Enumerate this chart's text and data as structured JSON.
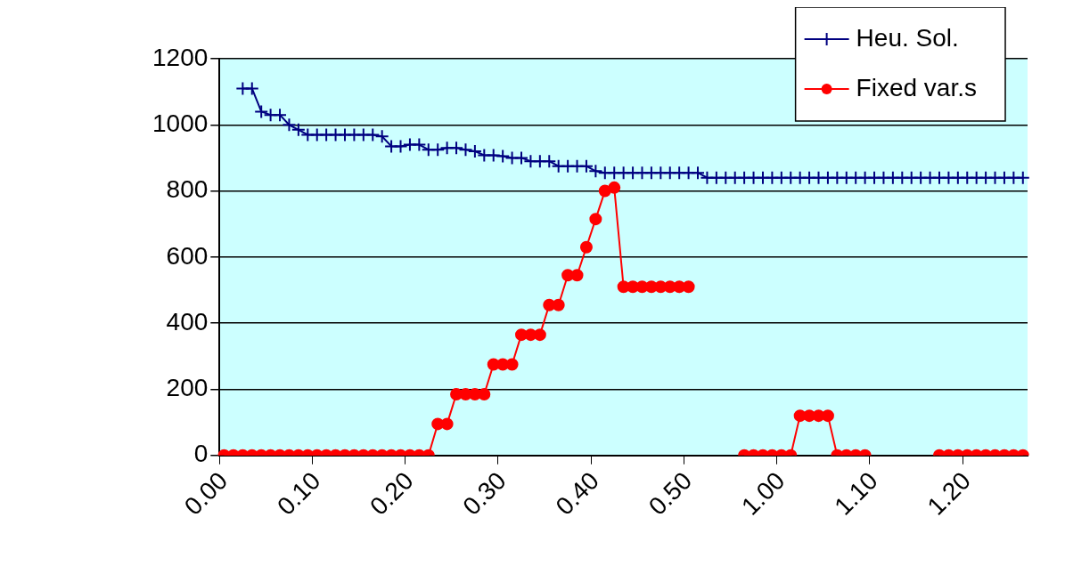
{
  "chart_data": {
    "type": "line",
    "categories": [
      "0.00",
      null,
      null,
      null,
      null,
      null,
      null,
      null,
      null,
      null,
      "0.10",
      null,
      null,
      null,
      null,
      null,
      null,
      null,
      null,
      null,
      "0.20",
      null,
      null,
      null,
      null,
      null,
      null,
      null,
      null,
      null,
      "0.30",
      null,
      null,
      null,
      null,
      null,
      null,
      null,
      null,
      null,
      "0.40",
      null,
      null,
      null,
      null,
      null,
      null,
      null,
      null,
      null,
      "0.50",
      null,
      null,
      null,
      null,
      null,
      null,
      null,
      null,
      null,
      "1.00",
      null,
      null,
      null,
      null,
      null,
      null,
      null,
      null,
      null,
      "1.10",
      null,
      null,
      null,
      null,
      null,
      null,
      null,
      null,
      null,
      "1.20",
      null,
      null,
      null,
      null,
      null,
      null
    ],
    "series": [
      {
        "name": "Heu. Sol.",
        "color": "#000080",
        "marker": "cross",
        "values": [
          null,
          null,
          1110,
          1110,
          1040,
          1030,
          1030,
          1000,
          985,
          970,
          970,
          970,
          970,
          970,
          970,
          970,
          970,
          965,
          935,
          935,
          940,
          940,
          925,
          925,
          930,
          930,
          925,
          920,
          908,
          908,
          905,
          900,
          900,
          890,
          890,
          890,
          875,
          875,
          875,
          875,
          860,
          855,
          855,
          855,
          855,
          855,
          855,
          855,
          855,
          855,
          855,
          855,
          840,
          840,
          840,
          840,
          840,
          840,
          840,
          840,
          840,
          840,
          840,
          840,
          840,
          840,
          840,
          840,
          840,
          840,
          840,
          840,
          840,
          840,
          840,
          840,
          840,
          840,
          840,
          840,
          840,
          840,
          840,
          840,
          840,
          840,
          840
        ]
      },
      {
        "name": "Fixed var.s",
        "color": "#ff0000",
        "marker": "circle",
        "values": [
          0,
          0,
          0,
          0,
          0,
          0,
          0,
          0,
          0,
          0,
          0,
          0,
          0,
          0,
          0,
          0,
          0,
          0,
          0,
          0,
          0,
          0,
          0,
          95,
          95,
          185,
          185,
          185,
          185,
          275,
          275,
          275,
          365,
          365,
          365,
          455,
          455,
          545,
          545,
          630,
          715,
          800,
          810,
          510,
          510,
          510,
          510,
          510,
          510,
          510,
          510,
          null,
          null,
          null,
          null,
          null,
          0,
          0,
          0,
          0,
          0,
          0,
          120,
          120,
          120,
          120,
          0,
          0,
          0,
          0,
          null,
          null,
          null,
          null,
          null,
          null,
          null,
          0,
          0,
          0,
          0,
          0,
          0,
          0,
          0,
          0,
          0
        ]
      }
    ],
    "ylim": [
      0,
      1200
    ],
    "yticks": [
      0,
      200,
      400,
      600,
      800,
      1000,
      1200
    ],
    "grid": "y",
    "legend": "top right"
  }
}
